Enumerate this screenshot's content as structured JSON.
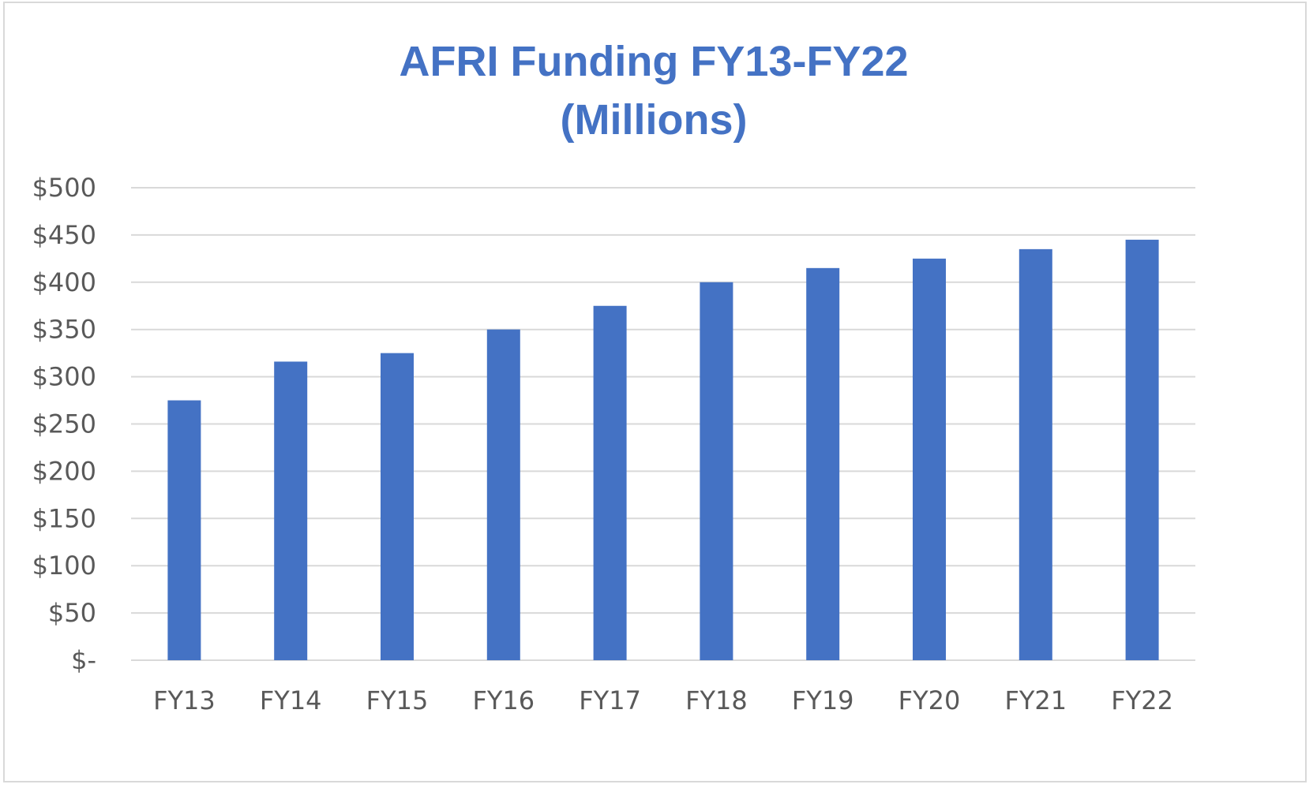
{
  "chart_data": {
    "type": "bar",
    "title": [
      "AFRI Funding FY13-FY22",
      "(Millions)"
    ],
    "categories": [
      "FY13",
      "FY14",
      "FY15",
      "FY16",
      "FY17",
      "FY18",
      "FY19",
      "FY20",
      "FY21",
      "FY22"
    ],
    "values": [
      275,
      316,
      325,
      350,
      375,
      400,
      415,
      425,
      435,
      445
    ],
    "ylim": [
      0,
      500
    ],
    "y_ticks": [
      0,
      50,
      100,
      150,
      200,
      250,
      300,
      350,
      400,
      450,
      500
    ],
    "y_tick_labels": [
      "$-",
      "$50",
      "$100",
      "$150",
      "$200",
      "$250",
      "$300",
      "$350",
      "$400",
      "$450",
      "$500"
    ],
    "grid": true,
    "legend": "none",
    "bar_color": "#4472c4"
  }
}
